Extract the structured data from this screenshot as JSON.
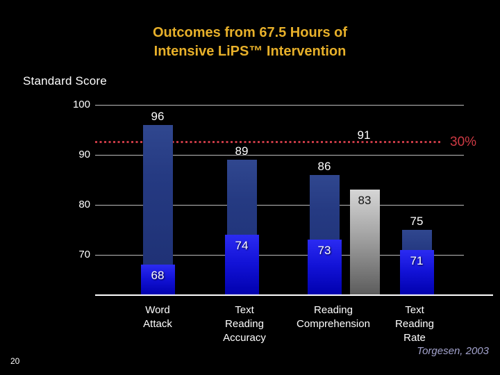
{
  "slide": {
    "title_lines": [
      "Outcomes from 67.5 Hours of",
      "Intensive LiPS™ Intervention"
    ],
    "axis_title": "Standard Score",
    "citation": "Torgesen, 2003",
    "page_number": "20"
  },
  "colors": {
    "background": "#000000",
    "title_gold": "#e7b02a",
    "text_white": "#ffffff",
    "gridline_gray": "#bcbcbc",
    "dark_blue_bar": "#24377d",
    "bright_blue_bar": "#1414d8",
    "gray_bar": "#9a9a9a",
    "benchmark_red": "#c93a46",
    "citation_lavender": "#a3a3cd"
  },
  "chart_data": {
    "type": "bar",
    "title": "Outcomes from 67.5 Hours of Intensive LiPS™ Intervention",
    "xlabel": "",
    "ylabel": "Standard Score",
    "categories": [
      "Word Attack",
      "Text Reading Accuracy",
      "Reading Comprehension",
      "Text Reading Rate"
    ],
    "series": [
      {
        "name": "dark_blue",
        "values": [
          96,
          89,
          86,
          75
        ]
      },
      {
        "name": "bright_blue",
        "values": [
          68,
          74,
          73,
          71
        ]
      },
      {
        "name": "gray",
        "values": [
          null,
          null,
          83,
          null
        ]
      }
    ],
    "y_ticks": [
      100,
      90,
      80,
      70
    ],
    "ylim": [
      62,
      101
    ],
    "grid": true,
    "legend": false,
    "benchmark_line": {
      "style": "dotted",
      "color": "#c93a46",
      "approx_value": 92.5,
      "value_label": "91",
      "annotation": "30%"
    }
  }
}
